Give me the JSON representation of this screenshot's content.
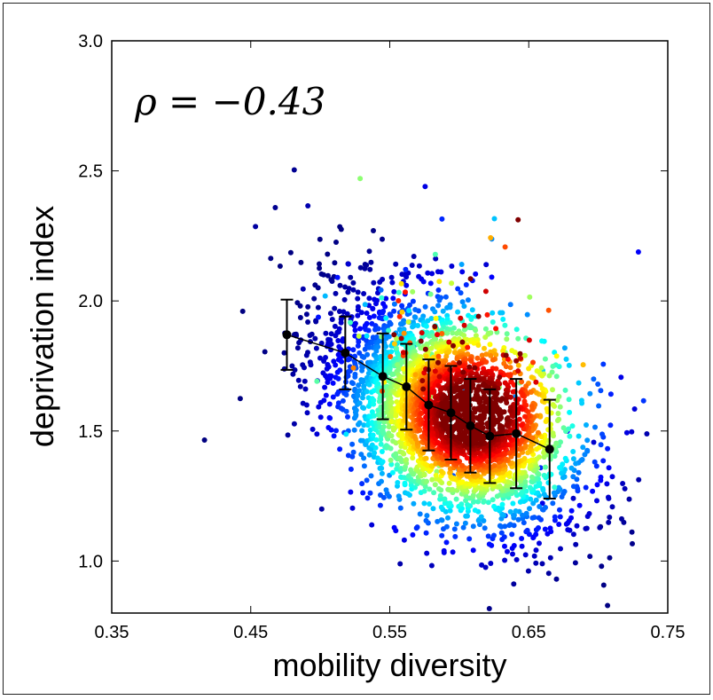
{
  "chart_data": {
    "type": "scatter",
    "title": "",
    "xlabel": "mobility diversity",
    "ylabel": "deprivation index",
    "xlim": [
      0.35,
      0.75
    ],
    "ylim": [
      0.8,
      3.0
    ],
    "xticks": [
      "0.35",
      "0.45",
      "0.55",
      "0.65",
      "0.75"
    ],
    "yticks": [
      "1.0",
      "1.5",
      "2.0",
      "2.5",
      "3.0"
    ],
    "annotation": "ρ = −0.43",
    "grid": false,
    "colormap": "jet (point density: blue = low, red = high)",
    "scatter_summary": {
      "n_points_approx": 3500,
      "center": [
        0.605,
        1.45
      ],
      "correlation": -0.43
    },
    "binned_means": {
      "x": [
        0.476,
        0.518,
        0.545,
        0.562,
        0.578,
        0.594,
        0.608,
        0.622,
        0.641,
        0.665
      ],
      "y": [
        1.87,
        1.8,
        1.71,
        1.67,
        1.6,
        1.57,
        1.52,
        1.48,
        1.49,
        1.43
      ],
      "err": [
        0.135,
        0.14,
        0.165,
        0.165,
        0.175,
        0.18,
        0.18,
        0.18,
        0.21,
        0.19
      ]
    },
    "colors": {
      "mean_line": "#000000",
      "low_density": "#1a1ad9",
      "high_density": "#cc0000"
    }
  }
}
